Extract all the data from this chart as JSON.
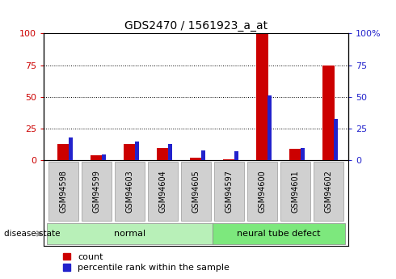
{
  "title": "GDS2470 / 1561923_a_at",
  "samples": [
    "GSM94598",
    "GSM94599",
    "GSM94603",
    "GSM94604",
    "GSM94605",
    "GSM94597",
    "GSM94600",
    "GSM94601",
    "GSM94602"
  ],
  "count_values": [
    13,
    4,
    13,
    10,
    2,
    1,
    100,
    9,
    75
  ],
  "percentile_values": [
    18,
    5,
    15,
    13,
    8,
    7,
    51,
    10,
    33
  ],
  "groups": [
    {
      "label": "normal",
      "start": 0,
      "end": 5
    },
    {
      "label": "neural tube defect",
      "start": 5,
      "end": 9
    }
  ],
  "group_color_normal": "#b8f0b8",
  "group_color_defect": "#7de87d",
  "bar_color_red": "#cc0000",
  "bar_color_blue": "#2222cc",
  "ylim": [
    0,
    100
  ],
  "yticks": [
    0,
    25,
    50,
    75,
    100
  ],
  "ytick_labels_left": [
    "0",
    "25",
    "50",
    "75",
    "100"
  ],
  "ytick_labels_right": [
    "0",
    "25",
    "50",
    "75",
    "100%"
  ],
  "background_color": "#ffffff",
  "plot_bg_color": "#ffffff",
  "label_color_left": "#cc0000",
  "label_color_right": "#2222cc",
  "legend_red": "count",
  "legend_blue": "percentile rank within the sample",
  "disease_state_label": "disease state",
  "title_fontsize": 10,
  "tick_label_fontsize": 7,
  "legend_fontsize": 8,
  "xticklabel_fontsize": 7,
  "group_label_fontsize": 8
}
